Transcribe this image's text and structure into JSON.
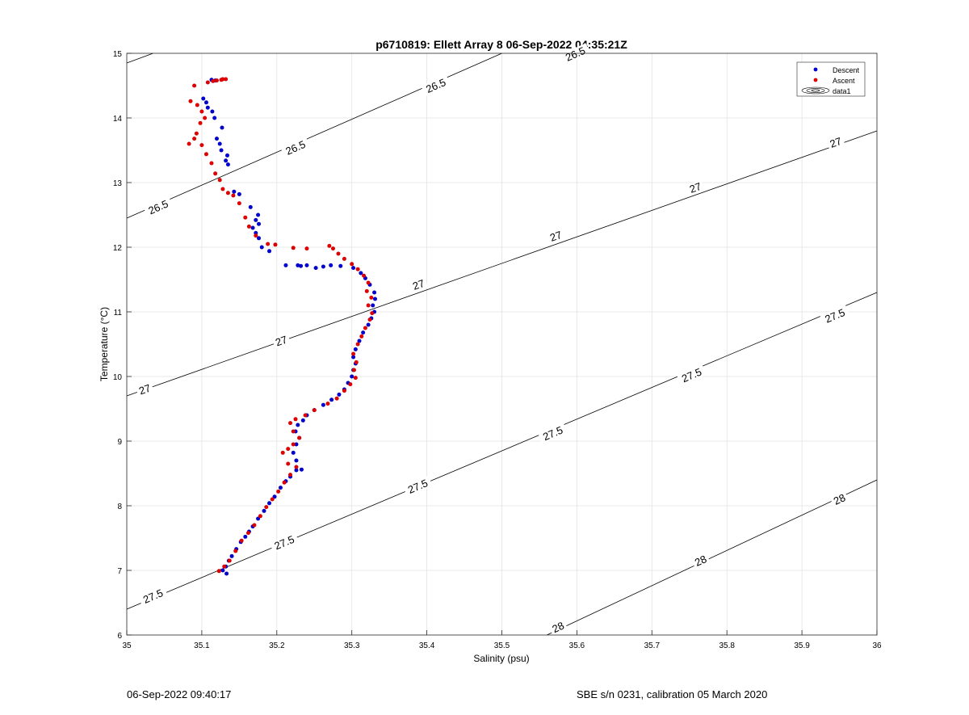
{
  "chart_data": {
    "type": "scatter",
    "title": "p6710819: Ellett Array 8 06-Sep-2022 04:35:21Z",
    "xlabel": "Salinity (psu)",
    "ylabel": "Temperature (°C)",
    "xlim": [
      35,
      36
    ],
    "ylim": [
      6,
      15
    ],
    "grid": true,
    "legend_position": "top-right",
    "x_ticks": [
      "35",
      "35.1",
      "35.2",
      "35.3",
      "35.4",
      "35.5",
      "35.6",
      "35.7",
      "35.8",
      "35.9",
      "36"
    ],
    "y_ticks": [
      "6",
      "7",
      "8",
      "9",
      "10",
      "11",
      "12",
      "13",
      "14",
      "15"
    ],
    "legend": [
      "Descent",
      "Ascent",
      "data1"
    ],
    "colors": {
      "descent": "#0000cc",
      "ascent": "#dd0000",
      "contour": "#000000",
      "grid": "#e3e3e3"
    },
    "series": [
      {
        "name": "Descent",
        "points": [
          [
            35.133,
            6.95
          ],
          [
            35.128,
            7.0
          ],
          [
            35.132,
            7.06
          ],
          [
            35.136,
            7.15
          ],
          [
            35.14,
            7.22
          ],
          [
            35.146,
            7.33
          ],
          [
            35.152,
            7.44
          ],
          [
            35.158,
            7.52
          ],
          [
            35.163,
            7.6
          ],
          [
            35.168,
            7.68
          ],
          [
            35.175,
            7.8
          ],
          [
            35.183,
            7.92
          ],
          [
            35.19,
            8.04
          ],
          [
            35.197,
            8.14
          ],
          [
            35.205,
            8.28
          ],
          [
            35.212,
            8.38
          ],
          [
            35.218,
            8.45
          ],
          [
            35.226,
            8.55
          ],
          [
            35.233,
            8.56
          ],
          [
            35.226,
            8.7
          ],
          [
            35.222,
            8.82
          ],
          [
            35.226,
            8.95
          ],
          [
            35.23,
            9.05
          ],
          [
            35.225,
            9.15
          ],
          [
            35.228,
            9.25
          ],
          [
            35.235,
            9.32
          ],
          [
            35.24,
            9.4
          ],
          [
            35.25,
            9.48
          ],
          [
            35.262,
            9.56
          ],
          [
            35.273,
            9.64
          ],
          [
            35.283,
            9.72
          ],
          [
            35.29,
            9.8
          ],
          [
            35.295,
            9.9
          ],
          [
            35.3,
            10.0
          ],
          [
            35.302,
            10.1
          ],
          [
            35.305,
            10.2
          ],
          [
            35.302,
            10.3
          ],
          [
            35.305,
            10.42
          ],
          [
            35.31,
            10.55
          ],
          [
            35.315,
            10.68
          ],
          [
            35.322,
            10.8
          ],
          [
            35.326,
            10.9
          ],
          [
            35.33,
            11.0
          ],
          [
            35.328,
            11.1
          ],
          [
            35.331,
            11.2
          ],
          [
            35.33,
            11.3
          ],
          [
            35.324,
            11.42
          ],
          [
            35.318,
            11.52
          ],
          [
            35.312,
            11.6
          ],
          [
            35.302,
            11.68
          ],
          [
            35.285,
            11.71
          ],
          [
            35.272,
            11.72
          ],
          [
            35.262,
            11.7
          ],
          [
            35.252,
            11.68
          ],
          [
            35.24,
            11.72
          ],
          [
            35.232,
            11.71
          ],
          [
            35.228,
            11.72
          ],
          [
            35.212,
            11.72
          ],
          [
            35.19,
            11.94
          ],
          [
            35.18,
            12.0
          ],
          [
            35.176,
            12.14
          ],
          [
            35.172,
            12.22
          ],
          [
            35.168,
            12.3
          ],
          [
            35.176,
            12.36
          ],
          [
            35.172,
            12.42
          ],
          [
            35.175,
            12.5
          ],
          [
            35.165,
            12.62
          ],
          [
            35.15,
            12.82
          ],
          [
            35.143,
            12.86
          ],
          [
            35.135,
            13.28
          ],
          [
            35.132,
            13.34
          ],
          [
            35.134,
            13.42
          ],
          [
            35.126,
            13.5
          ],
          [
            35.124,
            13.6
          ],
          [
            35.12,
            13.68
          ],
          [
            35.127,
            13.85
          ],
          [
            35.117,
            14.0
          ],
          [
            35.114,
            14.1
          ],
          [
            35.108,
            14.16
          ],
          [
            35.106,
            14.24
          ],
          [
            35.102,
            14.3
          ],
          [
            35.113,
            14.59
          ],
          [
            35.118,
            14.58
          ]
        ]
      },
      {
        "name": "Ascent",
        "points": [
          [
            35.123,
            6.99
          ],
          [
            35.13,
            7.06
          ],
          [
            35.137,
            7.15
          ],
          [
            35.145,
            7.3
          ],
          [
            35.153,
            7.46
          ],
          [
            35.162,
            7.58
          ],
          [
            35.17,
            7.7
          ],
          [
            35.178,
            7.84
          ],
          [
            35.186,
            7.98
          ],
          [
            35.194,
            8.1
          ],
          [
            35.202,
            8.22
          ],
          [
            35.21,
            8.36
          ],
          [
            35.218,
            8.48
          ],
          [
            35.226,
            8.6
          ],
          [
            35.215,
            8.65
          ],
          [
            35.208,
            8.82
          ],
          [
            35.215,
            8.88
          ],
          [
            35.222,
            8.95
          ],
          [
            35.23,
            9.05
          ],
          [
            35.222,
            9.15
          ],
          [
            35.218,
            9.28
          ],
          [
            35.225,
            9.34
          ],
          [
            35.238,
            9.4
          ],
          [
            35.25,
            9.48
          ],
          [
            35.268,
            9.58
          ],
          [
            35.28,
            9.66
          ],
          [
            35.29,
            9.78
          ],
          [
            35.298,
            9.88
          ],
          [
            35.305,
            9.98
          ],
          [
            35.303,
            10.1
          ],
          [
            35.306,
            10.22
          ],
          [
            35.302,
            10.35
          ],
          [
            35.308,
            10.5
          ],
          [
            35.313,
            10.62
          ],
          [
            35.318,
            10.75
          ],
          [
            35.324,
            10.88
          ],
          [
            35.327,
            10.98
          ],
          [
            35.322,
            11.1
          ],
          [
            35.326,
            11.22
          ],
          [
            35.32,
            11.32
          ],
          [
            35.322,
            11.45
          ],
          [
            35.316,
            11.56
          ],
          [
            35.308,
            11.66
          ],
          [
            35.3,
            11.74
          ],
          [
            35.29,
            11.82
          ],
          [
            35.282,
            11.9
          ],
          [
            35.275,
            11.98
          ],
          [
            35.27,
            12.02
          ],
          [
            35.24,
            11.98
          ],
          [
            35.222,
            11.99
          ],
          [
            35.198,
            12.04
          ],
          [
            35.188,
            12.05
          ],
          [
            35.172,
            12.18
          ],
          [
            35.163,
            12.32
          ],
          [
            35.158,
            12.46
          ],
          [
            35.15,
            12.68
          ],
          [
            35.142,
            12.8
          ],
          [
            35.135,
            12.84
          ],
          [
            35.128,
            12.9
          ],
          [
            35.124,
            13.04
          ],
          [
            35.118,
            13.14
          ],
          [
            35.113,
            13.3
          ],
          [
            35.106,
            13.44
          ],
          [
            35.1,
            13.58
          ],
          [
            35.083,
            13.6
          ],
          [
            35.09,
            13.68
          ],
          [
            35.093,
            13.76
          ],
          [
            35.098,
            13.92
          ],
          [
            35.104,
            14.0
          ],
          [
            35.1,
            14.1
          ],
          [
            35.094,
            14.2
          ],
          [
            35.085,
            14.26
          ],
          [
            35.09,
            14.5
          ],
          [
            35.108,
            14.55
          ],
          [
            35.115,
            14.57
          ],
          [
            35.12,
            14.58
          ],
          [
            35.126,
            14.59
          ],
          [
            35.132,
            14.6
          ],
          [
            35.128,
            14.6
          ]
        ]
      }
    ],
    "contours": [
      {
        "level": "26.5",
        "line": [
          [
            35.0,
            12.45
          ],
          [
            35.5,
            15.0
          ]
        ],
        "labels": [
          [
            35.042,
            12.62
          ],
          [
            35.225,
            13.54
          ],
          [
            35.412,
            14.5
          ],
          [
            35.598,
            14.99
          ]
        ]
      },
      {
        "level": "26.5",
        "line": [
          [
            35.0,
            14.85
          ],
          [
            35.035,
            15.0
          ]
        ],
        "labels": []
      },
      {
        "level": "27",
        "line": [
          [
            35.0,
            9.7
          ],
          [
            36.0,
            13.8
          ]
        ],
        "labels": [
          [
            35.024,
            9.8
          ],
          [
            35.206,
            10.55
          ],
          [
            35.389,
            11.42
          ],
          [
            35.572,
            12.17
          ],
          [
            35.758,
            12.92
          ],
          [
            35.945,
            13.62
          ]
        ]
      },
      {
        "level": "27.5",
        "line": [
          [
            35.0,
            6.4
          ],
          [
            36.0,
            11.3
          ]
        ],
        "labels": [
          [
            35.035,
            6.6
          ],
          [
            35.21,
            7.43
          ],
          [
            35.388,
            8.3
          ],
          [
            35.568,
            9.12
          ],
          [
            35.753,
            10.02
          ],
          [
            35.944,
            10.94
          ]
        ]
      },
      {
        "level": "28",
        "line": [
          [
            35.56,
            6.0
          ],
          [
            36.0,
            8.4
          ]
        ],
        "labels": [
          [
            35.575,
            6.12
          ],
          [
            35.765,
            7.15
          ],
          [
            35.95,
            8.1
          ]
        ]
      }
    ]
  },
  "footer": {
    "timestamp": "06-Sep-2022 09:40:17",
    "instrument": "SBE s/n 0231, calibration 05 March 2020"
  }
}
